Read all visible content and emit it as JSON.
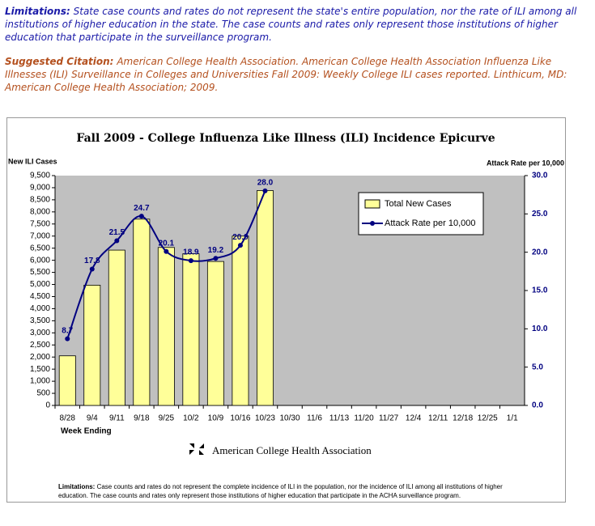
{
  "notes": {
    "limitations": {
      "label": "Limitations:",
      "text": "State case counts and rates do not represent the state's entire population, nor the rate of ILI among all institutions of higher education in the state. The case counts and rates only represent those institutions of higher education that participate in the surveillance program."
    },
    "citation": {
      "label": "Suggested Citation:",
      "text": "American College Health Association. American College Health Association Influenza Like Illnesses (ILI) Surveillance in Colleges and Universities Fall 2009: Weekly College ILI cases reported. Linthicum, MD: American College Health Association; 2009."
    }
  },
  "chart_data": {
    "type": "bar",
    "title": "Fall 2009 - College Influenza Like Illness (ILI) Incidence Epicurve",
    "y_label": "New ILI Cases",
    "y2_label": "Attack Rate per 10,000",
    "x_label": "Week Ending",
    "categories": [
      "8/28",
      "9/4",
      "9/11",
      "9/18",
      "9/25",
      "10/2",
      "10/9",
      "10/16",
      "10/23",
      "10/30",
      "11/6",
      "11/13",
      "11/20",
      "11/27",
      "12/4",
      "12/11",
      "12/18",
      "12/25",
      "1/1"
    ],
    "series": [
      {
        "name": "Total New Cases",
        "type": "bar",
        "color": "#ffff99",
        "values": [
          2050,
          4970,
          6420,
          7700,
          6530,
          6270,
          5950,
          7000,
          8880,
          null,
          null,
          null,
          null,
          null,
          null,
          null,
          null,
          null,
          null
        ]
      },
      {
        "name": "Attack Rate per 10,000",
        "type": "line",
        "axis": "y2",
        "color": "#000080",
        "values": [
          8.7,
          17.8,
          21.5,
          24.7,
          20.1,
          18.9,
          19.2,
          20.9,
          28.0,
          null,
          null,
          null,
          null,
          null,
          null,
          null,
          null,
          null,
          null
        ],
        "value_labels": [
          "8.7",
          "17.8",
          "21.5",
          "24.7",
          "20.1",
          "18.9",
          "19.2",
          "20.9",
          "28.0",
          null,
          null,
          null,
          null,
          null,
          null,
          null,
          null,
          null,
          null
        ]
      }
    ],
    "ylim": [
      0,
      9500
    ],
    "yticks": [
      0,
      500,
      {
        "value": 1000,
        "label": "1,000"
      },
      {
        "value": 1500,
        "label": "1,500"
      },
      {
        "value": 2000,
        "label": "2,000"
      },
      {
        "value": 2500,
        "label": "2,500"
      },
      {
        "value": 3000,
        "label": "3,000"
      },
      {
        "value": 3500,
        "label": "3,500"
      },
      {
        "value": 4000,
        "label": "4,000"
      },
      {
        "value": 4500,
        "label": "4,500"
      },
      {
        "value": 5000,
        "label": "5,000"
      },
      {
        "value": 5500,
        "label": "5,500"
      },
      {
        "value": 6000,
        "label": "6,000"
      },
      {
        "value": 6500,
        "label": "6,500"
      },
      {
        "value": 7000,
        "label": "7,000"
      },
      {
        "value": 7500,
        "label": "7,500"
      },
      {
        "value": 8000,
        "label": "8,000"
      },
      {
        "value": 8500,
        "label": "8,500"
      },
      {
        "value": 9000,
        "label": "9,000"
      },
      {
        "value": 9500,
        "label": "9,500"
      }
    ],
    "y2lim": [
      0,
      30
    ],
    "y2ticks": [
      {
        "value": 0,
        "label": "0.0"
      },
      {
        "value": 5,
        "label": "5.0"
      },
      {
        "value": 10,
        "label": "10.0"
      },
      {
        "value": 15,
        "label": "15.0"
      },
      {
        "value": 20,
        "label": "20.0"
      },
      {
        "value": 25,
        "label": "25.0"
      },
      {
        "value": 30,
        "label": "30.0"
      }
    ],
    "legend": "top-right",
    "plot_background": "#c0c0c0"
  },
  "footer": {
    "organization": "American College Health Association",
    "limitations": {
      "label": "Limitations:",
      "text": "Case counts and rates do not represent the complete incidence of ILI in the population, nor the incidence of ILI among all institutions of higher education.  The case counts and rates only represent those institutions of higher education that participate in the ACHA surveillance program."
    }
  }
}
